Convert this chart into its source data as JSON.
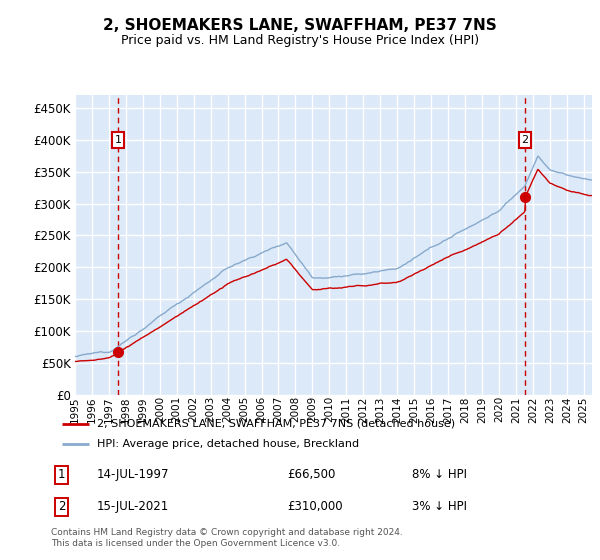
{
  "title": "2, SHOEMAKERS LANE, SWAFFHAM, PE37 7NS",
  "subtitle": "Price paid vs. HM Land Registry's House Price Index (HPI)",
  "legend_label_red": "2, SHOEMAKERS LANE, SWAFFHAM, PE37 7NS (detached house)",
  "legend_label_blue": "HPI: Average price, detached house, Breckland",
  "annotation1_date": "14-JUL-1997",
  "annotation1_price": "£66,500",
  "annotation1_hpi": "8% ↓ HPI",
  "annotation1_year": 1997.54,
  "annotation1_value": 66500,
  "annotation2_date": "15-JUL-2021",
  "annotation2_price": "£310,000",
  "annotation2_hpi": "3% ↓ HPI",
  "annotation2_year": 2021.54,
  "annotation2_value": 310000,
  "yticks": [
    0,
    50000,
    100000,
    150000,
    200000,
    250000,
    300000,
    350000,
    400000,
    450000
  ],
  "ylim": [
    0,
    470000
  ],
  "xlim_start": 1995.0,
  "xlim_end": 2025.5,
  "background_color": "#dce9f8",
  "grid_color": "#ffffff",
  "red_line_color": "#cc0000",
  "blue_line_color": "#88aacc",
  "dashed_line_color": "#cc0000",
  "box_color": "#cc0000",
  "footnote": "Contains HM Land Registry data © Crown copyright and database right 2024.\nThis data is licensed under the Open Government Licence v3.0.",
  "xtick_years": [
    1995,
    1996,
    1997,
    1998,
    1999,
    2000,
    2001,
    2002,
    2003,
    2004,
    2005,
    2006,
    2007,
    2008,
    2009,
    2010,
    2011,
    2012,
    2013,
    2014,
    2015,
    2016,
    2017,
    2018,
    2019,
    2020,
    2021,
    2022,
    2023,
    2024,
    2025
  ]
}
